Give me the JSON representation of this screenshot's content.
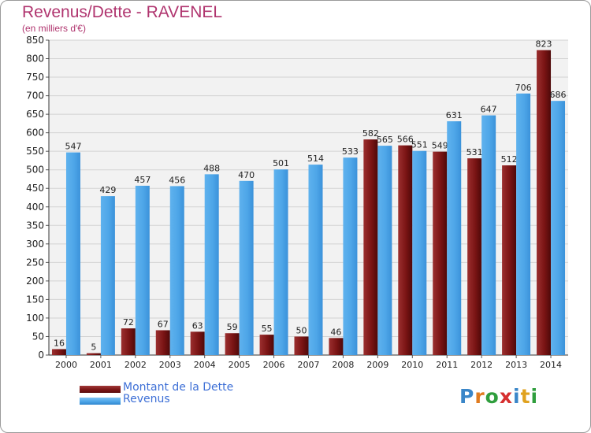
{
  "title": "Revenus/Dette - RAVENEL",
  "subtitle": "(en milliers d'€)",
  "logo": {
    "text": "Proxiti",
    "letter_colors": [
      "#3a86c8",
      "#e07b1f",
      "#2f9e3d",
      "#d62f2f",
      "#3a86c8",
      "#e0a21f",
      "#2f9e3d"
    ]
  },
  "chart_data": {
    "type": "bar",
    "categories": [
      "2000",
      "2001",
      "2002",
      "2003",
      "2004",
      "2005",
      "2006",
      "2007",
      "2008",
      "2009",
      "2010",
      "2011",
      "2012",
      "2013",
      "2014"
    ],
    "series": [
      {
        "name": "Montant de la Dette",
        "color": "#7a1414",
        "values": [
          16,
          5,
          72,
          67,
          63,
          59,
          55,
          50,
          46,
          582,
          566,
          549,
          531,
          512,
          823
        ]
      },
      {
        "name": "Revenus",
        "color": "#4ea6e8",
        "values": [
          547,
          429,
          457,
          456,
          488,
          470,
          501,
          514,
          533,
          565,
          551,
          631,
          647,
          706,
          686
        ]
      }
    ],
    "ylim": [
      0,
      850
    ],
    "yticks": [
      0,
      50,
      100,
      150,
      200,
      250,
      300,
      350,
      400,
      450,
      500,
      550,
      600,
      650,
      700,
      750,
      800,
      850
    ],
    "grid": true,
    "legend_position": "bottom-left"
  }
}
